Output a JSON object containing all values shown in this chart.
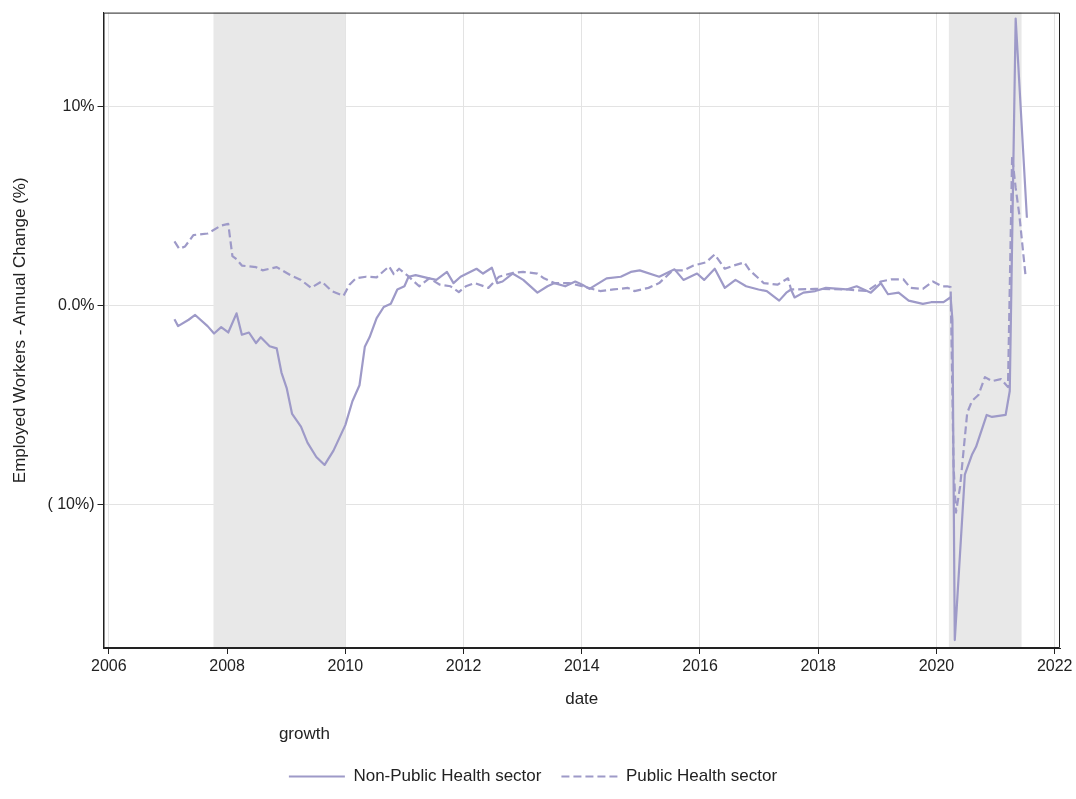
{
  "chart_data": {
    "type": "line",
    "xlabel": "date",
    "ylabel": "Employed Workers - Annual Change (%)",
    "legend_title": "growth",
    "legend": "bottom",
    "grid": true,
    "marker": "none",
    "xlim": [
      2005.91,
      2022.09
    ],
    "xticks": [
      2006,
      2008,
      2010,
      2012,
      2014,
      2016,
      2018,
      2020,
      2022
    ],
    "ylim": [
      -17.2,
      14.7
    ],
    "yticks": [
      {
        "value": 10,
        "label": "10%"
      },
      {
        "value": 0,
        "label": "0.0%"
      },
      {
        "value": -10,
        "label": "( 10%)"
      }
    ],
    "bands": [
      {
        "axis": "x",
        "from": 2007.77,
        "to": 2010.0,
        "color": "#e8e8e8"
      },
      {
        "axis": "x",
        "from": 2020.21,
        "to": 2021.44,
        "color": "#e8e8e8"
      }
    ],
    "series": [
      {
        "name": "Non-Public Health sector",
        "color": "#9e9ac8",
        "line_style": "solid",
        "x": [
          2007.11,
          2007.17,
          2007.35,
          2007.46,
          2007.67,
          2007.78,
          2007.9,
          2008.02,
          2008.16,
          2008.25,
          2008.37,
          2008.49,
          2008.57,
          2008.72,
          2008.84,
          2008.92,
          2009.01,
          2009.1,
          2009.25,
          2009.36,
          2009.51,
          2009.65,
          2009.8,
          2010.0,
          2010.12,
          2010.24,
          2010.33,
          2010.41,
          2010.53,
          2010.65,
          2010.77,
          2010.88,
          2011.0,
          2011.07,
          2011.19,
          2011.42,
          2011.54,
          2011.72,
          2011.83,
          2011.95,
          2012.22,
          2012.33,
          2012.48,
          2012.57,
          2012.66,
          2012.83,
          2013.01,
          2013.25,
          2013.42,
          2013.54,
          2013.72,
          2013.89,
          2014.01,
          2014.13,
          2014.42,
          2014.66,
          2014.83,
          2014.98,
          2015.31,
          2015.57,
          2015.72,
          2015.95,
          2016.07,
          2016.25,
          2016.42,
          2016.6,
          2016.78,
          2016.99,
          2017.13,
          2017.34,
          2017.46,
          2017.54,
          2017.6,
          2017.75,
          2017.95,
          2018.13,
          2018.48,
          2018.65,
          2018.89,
          2019.06,
          2019.18,
          2019.36,
          2019.53,
          2019.77,
          2019.91,
          2020.12,
          2020.24,
          2020.27,
          2020.31,
          2020.48,
          2020.6,
          2020.67,
          2020.85,
          2020.94,
          2021.17,
          2021.24,
          2021.34,
          2021.53
        ],
        "values": [
          -0.69,
          -1.04,
          -0.72,
          -0.48,
          -1.04,
          -1.41,
          -1.09,
          -1.36,
          -0.4,
          -1.47,
          -1.36,
          -1.89,
          -1.6,
          -2.05,
          -2.16,
          -3.37,
          -4.17,
          -5.45,
          -6.09,
          -6.89,
          -7.61,
          -8.01,
          -7.29,
          -6.01,
          -4.81,
          -4.01,
          -2.08,
          -1.6,
          -0.64,
          -0.08,
          0.08,
          0.8,
          0.96,
          1.44,
          1.52,
          1.36,
          1.28,
          1.68,
          1.12,
          1.44,
          1.84,
          1.6,
          1.89,
          1.12,
          1.2,
          1.6,
          1.28,
          0.64,
          0.96,
          1.12,
          0.96,
          1.2,
          1.04,
          0.83,
          1.36,
          1.44,
          1.68,
          1.76,
          1.44,
          1.81,
          1.28,
          1.6,
          1.28,
          1.84,
          0.88,
          1.28,
          0.96,
          0.8,
          0.72,
          0.24,
          0.64,
          0.8,
          0.4,
          0.64,
          0.72,
          0.88,
          0.8,
          0.96,
          0.64,
          1.12,
          0.56,
          0.64,
          0.24,
          0.08,
          0.16,
          0.16,
          0.41,
          -0.72,
          -16.8,
          -8.5,
          -7.5,
          -7.1,
          -5.5,
          -5.6,
          -5.5,
          -4.3,
          14.4,
          4.4
        ]
      },
      {
        "name": "Public Health sector",
        "color": "#9e9ac8",
        "line_style": "dashed",
        "x": [
          2007.11,
          2007.19,
          2007.29,
          2007.43,
          2007.67,
          2007.9,
          2008.02,
          2008.09,
          2008.16,
          2008.25,
          2008.49,
          2008.6,
          2008.84,
          2009.07,
          2009.25,
          2009.42,
          2009.6,
          2009.77,
          2009.97,
          2010.07,
          2010.18,
          2010.35,
          2010.53,
          2010.74,
          2010.82,
          2010.91,
          2011.06,
          2011.25,
          2011.42,
          2011.6,
          2011.78,
          2011.92,
          2012.04,
          2012.19,
          2012.42,
          2012.6,
          2012.83,
          2013.01,
          2013.25,
          2013.36,
          2013.54,
          2013.78,
          2014.01,
          2014.31,
          2014.54,
          2014.78,
          2014.89,
          2015.13,
          2015.31,
          2015.54,
          2015.72,
          2015.89,
          2016.1,
          2016.25,
          2016.42,
          2016.57,
          2016.75,
          2016.84,
          2017.08,
          2017.31,
          2017.49,
          2017.54,
          2017.95,
          2018.48,
          2018.83,
          2019.06,
          2019.24,
          2019.44,
          2019.56,
          2019.77,
          2019.94,
          2020.09,
          2020.18,
          2020.24,
          2020.29,
          2020.33,
          2020.4,
          2020.52,
          2020.6,
          2020.71,
          2020.82,
          2020.94,
          2021.09,
          2021.21,
          2021.28,
          2021.34,
          2021.4,
          2021.51
        ],
        "values": [
          3.21,
          2.84,
          2.96,
          3.53,
          3.61,
          4.01,
          4.09,
          2.48,
          2.32,
          2.0,
          1.92,
          1.76,
          1.92,
          1.52,
          1.28,
          0.88,
          1.2,
          0.72,
          0.48,
          1.04,
          1.36,
          1.44,
          1.41,
          1.96,
          1.57,
          1.84,
          1.48,
          0.96,
          1.36,
          1.04,
          0.96,
          0.67,
          0.96,
          1.12,
          0.88,
          1.44,
          1.63,
          1.68,
          1.6,
          1.36,
          1.12,
          1.12,
          0.96,
          0.72,
          0.8,
          0.88,
          0.72,
          0.88,
          1.12,
          1.76,
          1.76,
          2.0,
          2.16,
          2.56,
          1.84,
          2.0,
          2.16,
          1.76,
          1.12,
          1.04,
          1.36,
          0.8,
          0.83,
          0.8,
          0.72,
          1.2,
          1.31,
          1.31,
          0.88,
          0.83,
          1.2,
          0.96,
          0.96,
          0.92,
          -8.1,
          -10.4,
          -9.1,
          -5.4,
          -4.8,
          -4.5,
          -3.6,
          -3.8,
          -3.7,
          -4.1,
          7.5,
          5.9,
          4.6,
          1.4
        ]
      }
    ]
  }
}
